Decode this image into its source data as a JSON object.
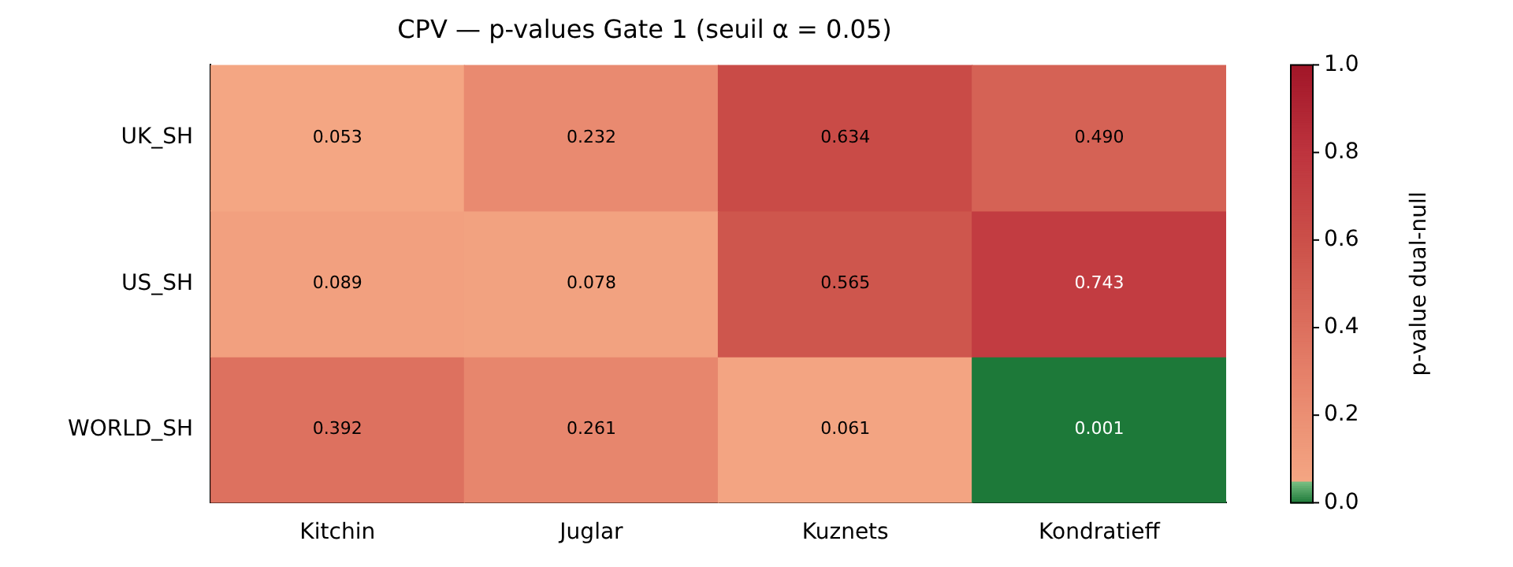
{
  "chart_data": {
    "type": "heatmap",
    "title": "CPV — p-values Gate 1 (seuil α = 0.05)",
    "clabel": "p-value dual-null",
    "categories": [
      "Kitchin",
      "Juglar",
      "Kuznets",
      "Kondratieff"
    ],
    "y_categories": [
      "UK_SH",
      "US_SH",
      "WORLD_SH"
    ],
    "cells": [
      [
        0.053,
        0.232,
        0.634,
        0.49
      ],
      [
        0.089,
        0.078,
        0.565,
        0.743
      ],
      [
        0.392,
        0.261,
        0.061,
        0.001
      ]
    ],
    "cell_labels": [
      [
        "0.053",
        "0.232",
        "0.634",
        "0.490"
      ],
      [
        "0.089",
        "0.078",
        "0.565",
        "0.743"
      ],
      [
        "0.392",
        "0.261",
        "0.061",
        "0.001"
      ]
    ],
    "clim": [
      0,
      1
    ],
    "cticks": [
      {
        "value": 0,
        "label": "0.0"
      },
      0.2,
      0.4,
      0.6,
      0.8,
      {
        "value": 1,
        "label": "1.0"
      }
    ]
  }
}
